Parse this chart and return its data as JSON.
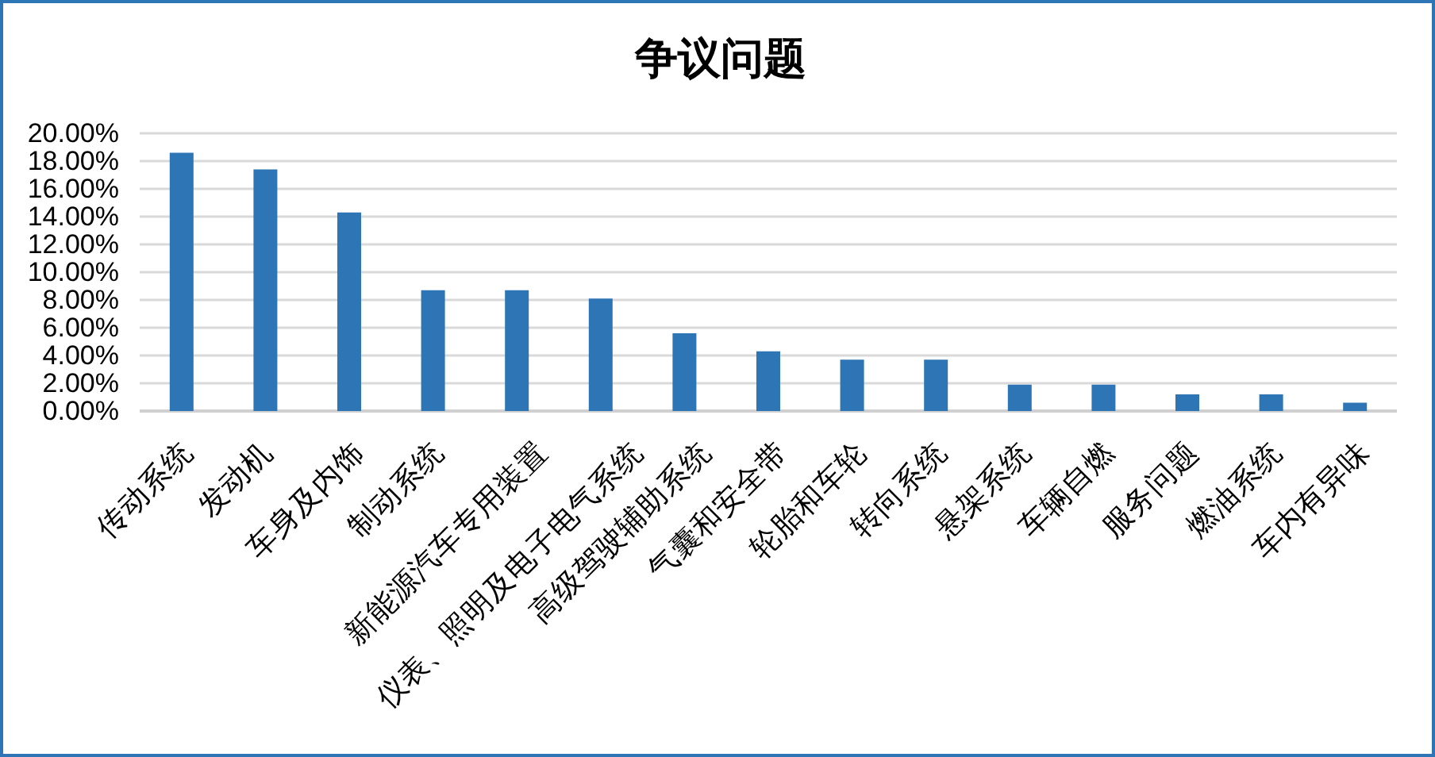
{
  "chart_data": {
    "type": "bar",
    "title": "争议问题",
    "categories": [
      "传动系统",
      "发动机",
      "车身及内饰",
      "制动系统",
      "新能源汽车专用装置",
      "仪表、照明及电子电气系统",
      "高级驾驶辅助系统",
      "气囊和安全带",
      "轮胎和车轮",
      "转向系统",
      "悬架系统",
      "车辆自燃",
      "服务问题",
      "燃油系统",
      "车内有异味"
    ],
    "values": [
      18.6,
      17.4,
      14.3,
      8.7,
      8.7,
      8.1,
      5.6,
      4.3,
      3.7,
      3.7,
      1.9,
      1.9,
      1.2,
      1.2,
      0.6
    ],
    "color": "#2e75b6",
    "ylim": [
      0,
      20
    ],
    "yticks": [
      {
        "value": 0,
        "label": "0.00%"
      },
      {
        "value": 2,
        "label": "2.00%"
      },
      {
        "value": 4,
        "label": "4.00%"
      },
      {
        "value": 6,
        "label": "6.00%"
      },
      {
        "value": 8,
        "label": "8.00%"
      },
      {
        "value": 10,
        "label": "10.00%"
      },
      {
        "value": 12,
        "label": "12.00%"
      },
      {
        "value": 14,
        "label": "14.00%"
      },
      {
        "value": 16,
        "label": "16.00%"
      },
      {
        "value": 18,
        "label": "18.00%"
      },
      {
        "value": 20,
        "label": "20.00%"
      }
    ],
    "grid": "y"
  }
}
